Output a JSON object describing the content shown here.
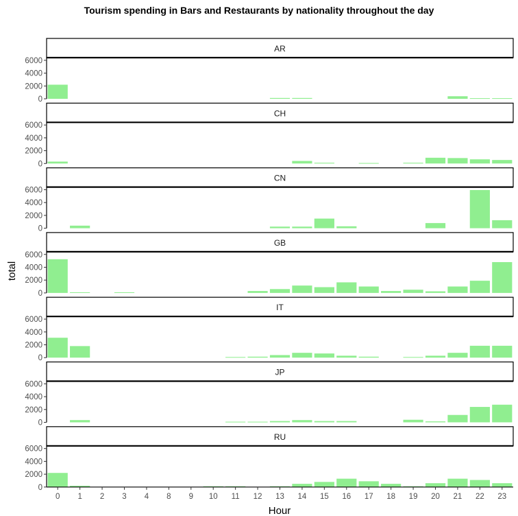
{
  "chart_data": {
    "type": "bar",
    "title": "Tourism spending in Bars and Restaurants by nationality throughout the day",
    "xlabel": "Hour",
    "ylabel": "total",
    "ylim": [
      0,
      6200
    ],
    "yticks": [
      0,
      2000,
      4000,
      6000
    ],
    "categories": [
      "0",
      "1",
      "2",
      "3",
      "4",
      "8",
      "9",
      "10",
      "11",
      "12",
      "13",
      "14",
      "15",
      "16",
      "17",
      "18",
      "19",
      "20",
      "21",
      "22",
      "23"
    ],
    "bar_color": "#90EE90",
    "panels": [
      {
        "name": "AR",
        "values": [
          2200,
          0,
          0,
          0,
          0,
          0,
          0,
          0,
          0,
          0,
          130,
          130,
          0,
          0,
          0,
          0,
          0,
          0,
          400,
          100,
          100
        ]
      },
      {
        "name": "CH",
        "values": [
          300,
          0,
          0,
          0,
          0,
          0,
          0,
          0,
          0,
          0,
          0,
          400,
          120,
          0,
          80,
          0,
          120,
          900,
          850,
          650,
          550
        ]
      },
      {
        "name": "CN",
        "values": [
          0,
          400,
          0,
          0,
          0,
          0,
          0,
          0,
          0,
          0,
          250,
          250,
          1500,
          300,
          0,
          0,
          0,
          800,
          0,
          5950,
          1250
        ]
      },
      {
        "name": "GB",
        "values": [
          5250,
          100,
          0,
          100,
          0,
          0,
          0,
          0,
          0,
          300,
          600,
          1150,
          900,
          1650,
          1000,
          300,
          500,
          250,
          1000,
          1900,
          4800
        ]
      },
      {
        "name": "IT",
        "values": [
          3100,
          1800,
          0,
          0,
          0,
          0,
          0,
          0,
          100,
          150,
          400,
          750,
          650,
          300,
          150,
          0,
          100,
          300,
          750,
          1850,
          1850
        ]
      },
      {
        "name": "JP",
        "values": [
          0,
          350,
          0,
          0,
          0,
          0,
          0,
          0,
          100,
          100,
          200,
          350,
          200,
          200,
          0,
          0,
          400,
          150,
          1150,
          2400,
          2750
        ]
      },
      {
        "name": "RU",
        "values": [
          2200,
          200,
          0,
          0,
          0,
          0,
          0,
          120,
          120,
          0,
          120,
          500,
          800,
          1300,
          900,
          500,
          120,
          600,
          1300,
          1100,
          600
        ]
      }
    ]
  }
}
